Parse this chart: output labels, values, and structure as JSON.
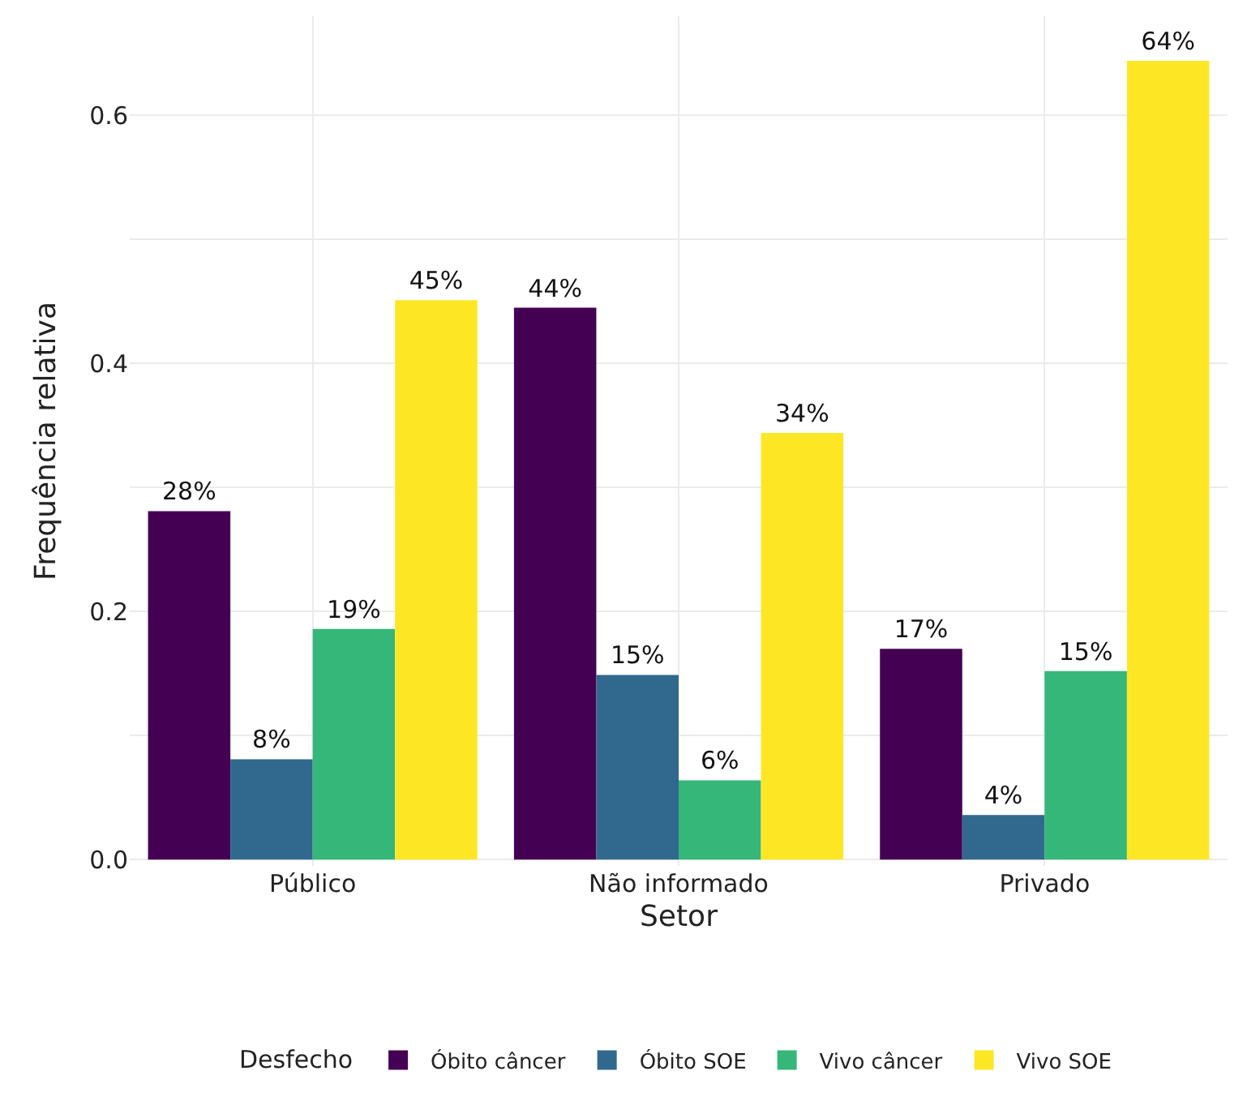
{
  "chart_data": {
    "type": "bar",
    "xlabel": "Setor",
    "ylabel": "Frequência relativa",
    "legend_title": "Desfecho",
    "categories": [
      "Público",
      "Não informado",
      "Privado"
    ],
    "series": [
      {
        "name": "Óbito câncer",
        "color": "#440154",
        "values": [
          0.281,
          0.445,
          0.17
        ],
        "value_labels": [
          "28%",
          "44%",
          "17%"
        ]
      },
      {
        "name": "Óbito SOE",
        "color": "#31688e",
        "values": [
          0.081,
          0.149,
          0.036
        ],
        "value_labels": [
          "8%",
          "15%",
          "4%"
        ]
      },
      {
        "name": "Vivo câncer",
        "color": "#35b779",
        "values": [
          0.186,
          0.064,
          0.152
        ],
        "value_labels": [
          "19%",
          "6%",
          "15%"
        ]
      },
      {
        "name": "Vivo SOE",
        "color": "#fde725",
        "values": [
          0.451,
          0.344,
          0.644
        ],
        "value_labels": [
          "45%",
          "34%",
          "64%"
        ]
      }
    ],
    "ylim": [
      -0.005,
      0.68
    ],
    "yticks": [
      {
        "value": 0,
        "label": "0.0"
      },
      {
        "value": 0.1,
        "label": null
      },
      {
        "value": 0.2,
        "label": "0.2"
      },
      {
        "value": 0.3,
        "label": null
      },
      {
        "value": 0.4,
        "label": "0.4"
      },
      {
        "value": 0.5,
        "label": null
      },
      {
        "value": 0.6,
        "label": "0.6"
      }
    ],
    "grid": true,
    "legend": "bottom"
  }
}
